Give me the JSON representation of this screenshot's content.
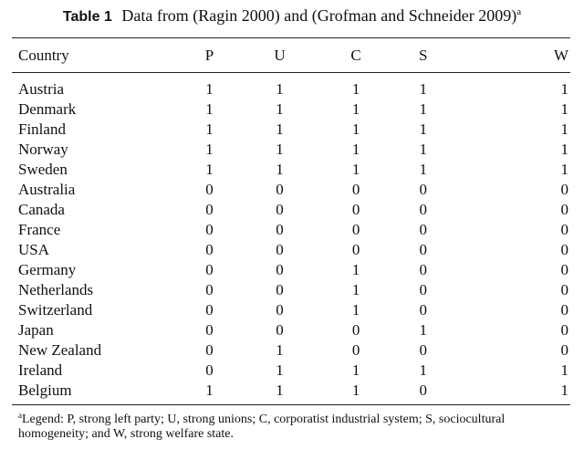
{
  "caption": {
    "label": "Table 1",
    "text": "Data from (Ragin 2000) and (Grofman and Schneider 2009)",
    "footnote_mark": "a"
  },
  "table": {
    "columns": [
      "Country",
      "P",
      "U",
      "C",
      "S",
      "W"
    ],
    "rows": [
      {
        "country": "Austria",
        "values": [
          "1",
          "1",
          "1",
          "1",
          "1"
        ]
      },
      {
        "country": "Denmark",
        "values": [
          "1",
          "1",
          "1",
          "1",
          "1"
        ]
      },
      {
        "country": "Finland",
        "values": [
          "1",
          "1",
          "1",
          "1",
          "1"
        ]
      },
      {
        "country": "Norway",
        "values": [
          "1",
          "1",
          "1",
          "1",
          "1"
        ]
      },
      {
        "country": "Sweden",
        "values": [
          "1",
          "1",
          "1",
          "1",
          "1"
        ]
      },
      {
        "country": "Australia",
        "values": [
          "0",
          "0",
          "0",
          "0",
          "0"
        ]
      },
      {
        "country": "Canada",
        "values": [
          "0",
          "0",
          "0",
          "0",
          "0"
        ]
      },
      {
        "country": "France",
        "values": [
          "0",
          "0",
          "0",
          "0",
          "0"
        ]
      },
      {
        "country": "USA",
        "values": [
          "0",
          "0",
          "0",
          "0",
          "0"
        ]
      },
      {
        "country": "Germany",
        "values": [
          "0",
          "0",
          "1",
          "0",
          "0"
        ]
      },
      {
        "country": "Netherlands",
        "values": [
          "0",
          "0",
          "1",
          "0",
          "0"
        ]
      },
      {
        "country": "Switzerland",
        "values": [
          "0",
          "0",
          "1",
          "0",
          "0"
        ]
      },
      {
        "country": "Japan",
        "values": [
          "0",
          "0",
          "0",
          "1",
          "0"
        ]
      },
      {
        "country": "New Zealand",
        "values": [
          "0",
          "1",
          "0",
          "0",
          "0"
        ]
      },
      {
        "country": "Ireland",
        "values": [
          "0",
          "1",
          "1",
          "1",
          "1"
        ]
      },
      {
        "country": "Belgium",
        "values": [
          "1",
          "1",
          "1",
          "0",
          "1"
        ]
      }
    ]
  },
  "footnote": {
    "mark": "a",
    "text": "Legend: P, strong left party; U, strong unions; C, corporatist industrial system; S, sociocultural homogeneity; and W, strong welfare state."
  }
}
